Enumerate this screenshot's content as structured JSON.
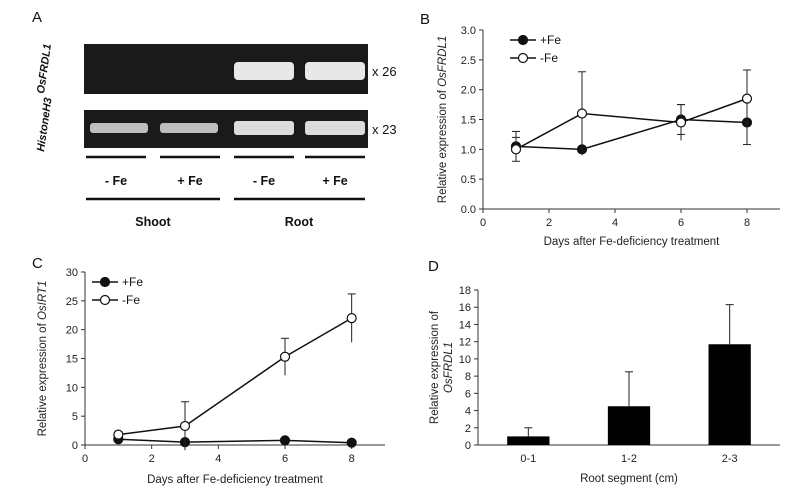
{
  "panels": {
    "a": "A",
    "b": "B",
    "c": "C",
    "d": "D"
  },
  "gel": {
    "gene1": "OsFRDL1",
    "gene2": "HistoneH3",
    "cycles1": "x 26",
    "cycles2": "x 23",
    "lanes": [
      "- Fe",
      "+ Fe",
      "- Fe",
      "+ Fe"
    ],
    "groups": [
      "Shoot",
      "Root"
    ]
  },
  "chart_data": [
    {
      "type": "line",
      "panel": "B",
      "ylabel_prefix": "Relative expression of ",
      "ylabel_gene": "OsFRDL1",
      "xlabel": "Days after Fe-deficiency treatment",
      "xlim": [
        0,
        9
      ],
      "ylim": [
        0,
        3.0
      ],
      "xticks": [
        0,
        2,
        4,
        6,
        8
      ],
      "yticks": [
        "0.0",
        "0.5",
        "1.0",
        "1.5",
        "2.0",
        "2.5",
        "3.0"
      ],
      "x": [
        1,
        3,
        6,
        8
      ],
      "series": [
        {
          "name": "+Fe",
          "marker": "filled",
          "values": [
            1.05,
            1.0,
            1.5,
            1.45
          ],
          "errors": [
            0.25,
            0.05,
            0.25,
            0.37
          ]
        },
        {
          "name": "-Fe",
          "marker": "open",
          "values": [
            1.0,
            1.6,
            1.45,
            1.85
          ],
          "errors": [
            0.2,
            0.7,
            0.3,
            0.48
          ]
        }
      ]
    },
    {
      "type": "line",
      "panel": "C",
      "ylabel_prefix": "Relative expression of ",
      "ylabel_gene": "OsIRT1",
      "xlabel": "Days after Fe-deficiency treatment",
      "xlim": [
        0,
        9
      ],
      "ylim": [
        0,
        30
      ],
      "xticks": [
        0,
        2,
        4,
        6,
        8
      ],
      "yticks": [
        "0",
        "5",
        "10",
        "15",
        "20",
        "25",
        "30"
      ],
      "x": [
        1,
        3,
        6,
        8
      ],
      "series": [
        {
          "name": "+Fe",
          "marker": "filled",
          "values": [
            1.0,
            0.5,
            0.8,
            0.4
          ],
          "errors": [
            0.2,
            0.1,
            0.2,
            0.1
          ]
        },
        {
          "name": "-Fe",
          "marker": "open",
          "values": [
            1.8,
            3.3,
            15.3,
            22.0
          ],
          "errors": [
            0.5,
            4.2,
            3.2,
            4.2
          ]
        }
      ]
    },
    {
      "type": "bar",
      "panel": "D",
      "ylabel_prefix": "Relative expression of",
      "ylabel_gene": "OsFRDL1",
      "xlabel": "Root segment (cm)",
      "ylim": [
        0,
        18
      ],
      "yticks": [
        "0",
        "2",
        "4",
        "6",
        "8",
        "10",
        "12",
        "14",
        "16",
        "18"
      ],
      "categories": [
        "0-1",
        "1-2",
        "2-3"
      ],
      "values": [
        1.0,
        4.5,
        11.7
      ],
      "errors": [
        1.0,
        4.0,
        4.6
      ]
    }
  ]
}
